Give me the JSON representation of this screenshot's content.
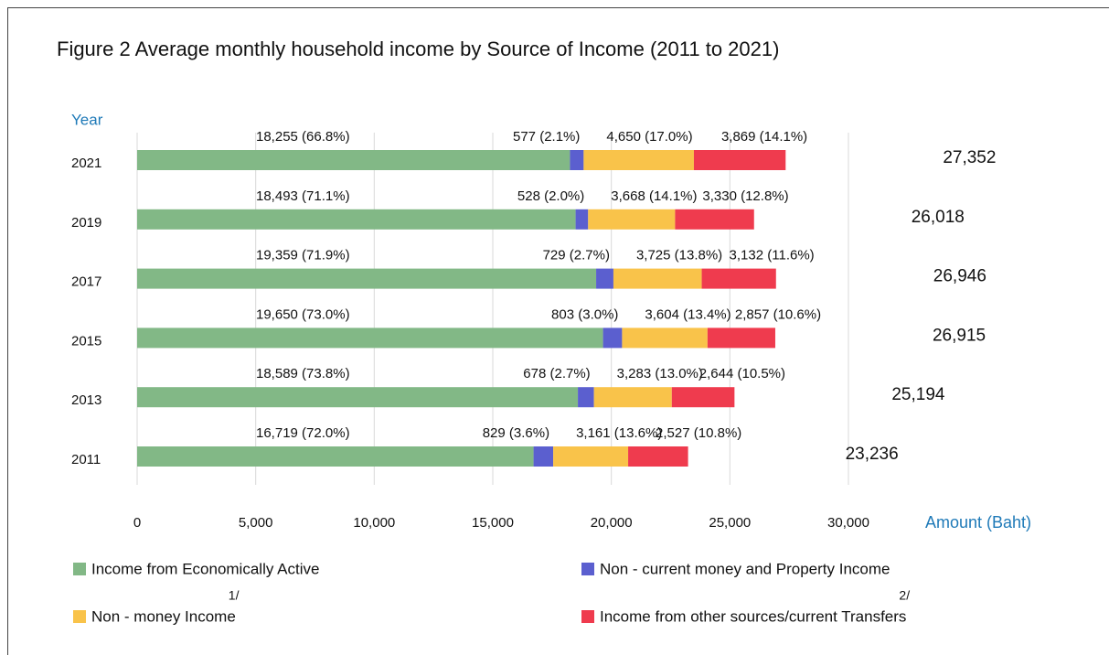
{
  "chart_data": {
    "type": "stacked-barh",
    "title": "Figure  2  Average monthly household income by Source of Income (2011 to 2021)",
    "y_label": "Year",
    "x_label": "Amount (Baht)",
    "categories": [
      "2021",
      "2019",
      "2017",
      "2015",
      "2013",
      "2011"
    ],
    "series": [
      {
        "name": "Income from Economically Active",
        "color": "#82b886",
        "values": [
          18255,
          18493,
          19359,
          19650,
          18589,
          16719
        ],
        "value_labels": [
          "18,255 (66.8%)",
          "18,493 (71.1%)",
          "19,359 (71.9%)",
          "19,650 (73.0%)",
          "18,589 (73.8%)",
          "16,719 (72.0%)"
        ]
      },
      {
        "name": "Non - current money and Property Income",
        "color": "#5b5fcf",
        "values": [
          577,
          528,
          729,
          803,
          678,
          829
        ],
        "value_labels": [
          "577 (2.1%)",
          "528 (2.0%)",
          "729 (2.7%)",
          "803 (3.0%)",
          "678 (2.7%)",
          "829 (3.6%)"
        ]
      },
      {
        "name": "Non - money Income",
        "color": "#f9c34a",
        "note": "1/",
        "values": [
          4650,
          3668,
          3725,
          3604,
          3283,
          3161
        ],
        "value_labels": [
          "4,650 (17.0%)",
          "3,668 (14.1%)",
          "3,725 (13.8%)",
          "3,604 (13.4%)",
          "3,283 (13.0%)",
          "3,161 (13.6%)"
        ]
      },
      {
        "name": "Income from other sources/current Transfers",
        "color": "#ef3b4e",
        "note": "2/",
        "values": [
          3869,
          3330,
          3132,
          2857,
          2644,
          2527
        ],
        "value_labels": [
          "3,869 (14.1%)",
          "3,330 (12.8%)",
          "3,132 (11.6%)",
          "2,857 (10.6%)",
          "2,644 (10.5%)",
          "2,527 (10.8%)"
        ]
      }
    ],
    "totals": [
      27352,
      26018,
      26946,
      26915,
      25194,
      23236
    ],
    "total_labels": [
      "27,352",
      "26,018",
      "26,946",
      "26,915",
      "25,194",
      "23,236"
    ],
    "xlim": [
      0,
      30000
    ],
    "xticks": [
      0,
      {
        "value": 5000,
        "label": "5,000"
      },
      {
        "value": 10000,
        "label": "10,000"
      },
      {
        "value": 15000,
        "label": "15,000"
      },
      {
        "value": 20000,
        "label": "20,000"
      },
      {
        "value": 25000,
        "label": "25,000"
      },
      {
        "value": 30000,
        "label": "30,000"
      }
    ],
    "grid": true
  }
}
